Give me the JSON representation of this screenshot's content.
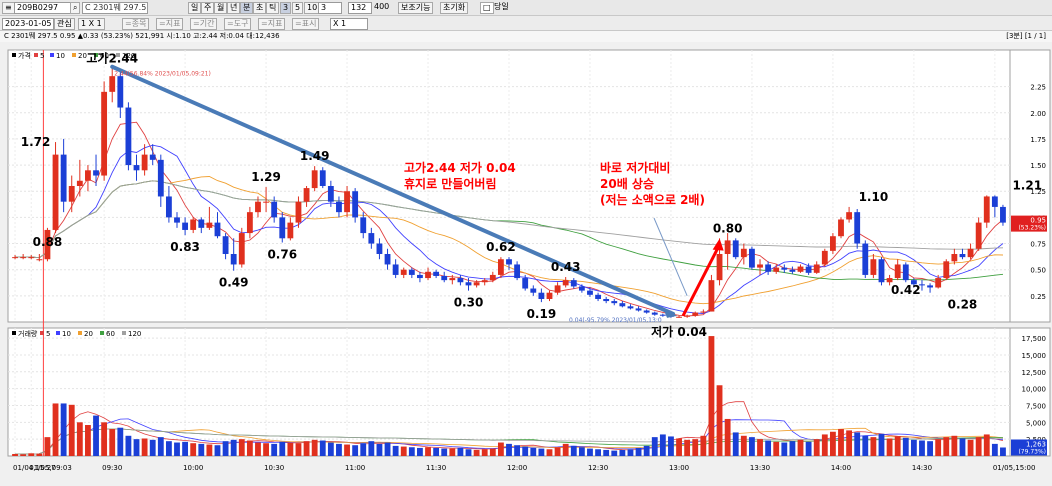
{
  "toolbar": {
    "code_value": "209B0297",
    "period_buttons": [
      "일",
      "주",
      "월",
      "년",
      "분",
      "초",
      "틱"
    ],
    "minute_buttons": [
      "3",
      "5",
      "10",
      "3"
    ],
    "count_value": "132",
    "total_count": "400",
    "assist_label": "보조기능",
    "reset_label": "초기화",
    "overlay_label": "당일"
  },
  "toolbar2": {
    "date_value": "2023-01-05",
    "interest_label": "관심",
    "ratio_label": "1 X 1",
    "buttons": [
      "=종목",
      "=지표",
      "=기간",
      "=도구",
      "=지표",
      "=표시"
    ],
    "zoom_value": "X 1"
  },
  "infobar": {
    "text": "C 2301뛔 297.5   0.95 ▲0.33 (53.23%)   521,991 시:1.10 고:2.44 저:0.04 대:12,436",
    "page_indicator": "[3분] [1 / 1]"
  },
  "price_legend": [
    "가격",
    "5",
    "10",
    "20",
    "60",
    "120"
  ],
  "volume_legend": [
    "거래량",
    "5",
    "10",
    "20",
    "60",
    "120"
  ],
  "colors": {
    "up": "#e0301e",
    "down": "#1b3fd6",
    "ma5": "#e04040",
    "ma10": "#4040ff",
    "ma20": "#f0a030",
    "ma60": "#40a040",
    "ma120": "#a0a0a0",
    "trend_line": "#4a7bb7",
    "annotation_red": "#ff0000"
  },
  "chart_data": {
    "type": "candlestick",
    "title": "",
    "y_ticks": [
      0.25,
      0.5,
      0.75,
      1.0,
      1.25,
      1.5,
      1.75,
      2.0,
      2.25
    ],
    "y_tick_labels": [
      "0.25",
      "0.50",
      "0.75",
      "1.00",
      "1.25",
      "1.50",
      "1.75",
      "2.00",
      "2.25"
    ],
    "ylim": [
      0,
      2.6
    ],
    "volume_ticks": [
      2500,
      5000,
      7500,
      10000,
      12500,
      15000,
      17500
    ],
    "volume_tick_labels": [
      "2,500",
      "5,000",
      "7,500",
      "10,000",
      "12,500",
      "15,000",
      "17,500"
    ],
    "volume_ylim": [
      0,
      19000
    ],
    "x_ticks": [
      {
        "i": 0,
        "label": "01/04,15:27"
      },
      {
        "i": 2,
        "label": "01/05,09:03"
      },
      {
        "i": 11,
        "label": "09:30"
      },
      {
        "i": 21,
        "label": "10:00"
      },
      {
        "i": 31,
        "label": "10:30"
      },
      {
        "i": 41,
        "label": "11:00"
      },
      {
        "i": 51,
        "label": "11:30"
      },
      {
        "i": 61,
        "label": "12:00"
      },
      {
        "i": 71,
        "label": "12:30"
      },
      {
        "i": 81,
        "label": "13:00"
      },
      {
        "i": 91,
        "label": "13:30"
      },
      {
        "i": 101,
        "label": "14:00"
      },
      {
        "i": 111,
        "label": "14:30"
      },
      {
        "i": 121,
        "label": "01/05,15:00"
      }
    ],
    "candles": [
      {
        "o": 0.62,
        "h": 0.64,
        "l": 0.6,
        "c": 0.62,
        "v": 300
      },
      {
        "o": 0.62,
        "h": 0.65,
        "l": 0.6,
        "c": 0.62,
        "v": 250
      },
      {
        "o": 0.62,
        "h": 0.64,
        "l": 0.6,
        "c": 0.62,
        "v": 400
      },
      {
        "o": 0.6,
        "h": 0.65,
        "l": 0.58,
        "c": 0.6,
        "v": 350
      },
      {
        "o": 0.6,
        "h": 0.9,
        "l": 0.58,
        "c": 0.88,
        "v": 2800
      },
      {
        "o": 0.88,
        "h": 1.72,
        "l": 0.85,
        "c": 1.6,
        "v": 7800
      },
      {
        "o": 1.6,
        "h": 1.75,
        "l": 1.05,
        "c": 1.15,
        "v": 7800
      },
      {
        "o": 1.15,
        "h": 1.4,
        "l": 1.05,
        "c": 1.3,
        "v": 7600
      },
      {
        "o": 1.3,
        "h": 1.55,
        "l": 1.2,
        "c": 1.35,
        "v": 5000
      },
      {
        "o": 1.35,
        "h": 1.5,
        "l": 1.25,
        "c": 1.45,
        "v": 4600
      },
      {
        "o": 1.45,
        "h": 1.6,
        "l": 1.3,
        "c": 1.4,
        "v": 6000
      },
      {
        "o": 1.4,
        "h": 2.3,
        "l": 1.35,
        "c": 2.2,
        "v": 5000
      },
      {
        "o": 2.2,
        "h": 2.44,
        "l": 2.1,
        "c": 2.35,
        "v": 4000
      },
      {
        "o": 2.35,
        "h": 2.4,
        "l": 1.95,
        "c": 2.05,
        "v": 4200
      },
      {
        "o": 2.05,
        "h": 2.1,
        "l": 1.45,
        "c": 1.5,
        "v": 3000
      },
      {
        "o": 1.5,
        "h": 1.6,
        "l": 1.35,
        "c": 1.45,
        "v": 2500
      },
      {
        "o": 1.45,
        "h": 1.7,
        "l": 1.4,
        "c": 1.6,
        "v": 2600
      },
      {
        "o": 1.6,
        "h": 1.7,
        "l": 1.5,
        "c": 1.55,
        "v": 2400
      },
      {
        "o": 1.55,
        "h": 1.6,
        "l": 1.1,
        "c": 1.2,
        "v": 2800
      },
      {
        "o": 1.2,
        "h": 1.3,
        "l": 0.95,
        "c": 1.0,
        "v": 2200
      },
      {
        "o": 1.0,
        "h": 1.05,
        "l": 0.9,
        "c": 0.95,
        "v": 2000
      },
      {
        "o": 0.95,
        "h": 1.0,
        "l": 0.83,
        "c": 0.88,
        "v": 2100
      },
      {
        "o": 0.88,
        "h": 1.0,
        "l": 0.85,
        "c": 0.98,
        "v": 1900
      },
      {
        "o": 0.98,
        "h": 1.0,
        "l": 0.85,
        "c": 0.9,
        "v": 1800
      },
      {
        "o": 0.9,
        "h": 1.1,
        "l": 0.88,
        "c": 0.95,
        "v": 1700
      },
      {
        "o": 0.95,
        "h": 1.05,
        "l": 0.8,
        "c": 0.82,
        "v": 1600
      },
      {
        "o": 0.82,
        "h": 0.85,
        "l": 0.6,
        "c": 0.65,
        "v": 2200
      },
      {
        "o": 0.65,
        "h": 0.8,
        "l": 0.49,
        "c": 0.55,
        "v": 2400
      },
      {
        "o": 0.55,
        "h": 0.9,
        "l": 0.52,
        "c": 0.85,
        "v": 2500
      },
      {
        "o": 0.85,
        "h": 1.1,
        "l": 0.8,
        "c": 1.05,
        "v": 2300
      },
      {
        "o": 1.05,
        "h": 1.2,
        "l": 1.0,
        "c": 1.15,
        "v": 2000
      },
      {
        "o": 1.15,
        "h": 1.29,
        "l": 1.05,
        "c": 1.15,
        "v": 1900
      },
      {
        "o": 1.15,
        "h": 1.2,
        "l": 0.95,
        "c": 1.0,
        "v": 1800
      },
      {
        "o": 1.0,
        "h": 1.05,
        "l": 0.76,
        "c": 0.8,
        "v": 2100
      },
      {
        "o": 0.8,
        "h": 1.0,
        "l": 0.78,
        "c": 0.95,
        "v": 2000
      },
      {
        "o": 0.95,
        "h": 1.2,
        "l": 0.9,
        "c": 1.15,
        "v": 1900
      },
      {
        "o": 1.15,
        "h": 1.3,
        "l": 1.1,
        "c": 1.28,
        "v": 2200
      },
      {
        "o": 1.28,
        "h": 1.49,
        "l": 1.25,
        "c": 1.45,
        "v": 2400
      },
      {
        "o": 1.45,
        "h": 1.48,
        "l": 1.28,
        "c": 1.3,
        "v": 2300
      },
      {
        "o": 1.3,
        "h": 1.35,
        "l": 1.1,
        "c": 1.15,
        "v": 2000
      },
      {
        "o": 1.15,
        "h": 1.2,
        "l": 1.0,
        "c": 1.05,
        "v": 1800
      },
      {
        "o": 1.05,
        "h": 1.3,
        "l": 1.0,
        "c": 1.25,
        "v": 1700
      },
      {
        "o": 1.25,
        "h": 1.28,
        "l": 0.95,
        "c": 1.0,
        "v": 1600
      },
      {
        "o": 1.0,
        "h": 1.05,
        "l": 0.8,
        "c": 0.85,
        "v": 1900
      },
      {
        "o": 0.85,
        "h": 0.9,
        "l": 0.7,
        "c": 0.75,
        "v": 2200
      },
      {
        "o": 0.75,
        "h": 0.8,
        "l": 0.6,
        "c": 0.65,
        "v": 1800
      },
      {
        "o": 0.65,
        "h": 0.7,
        "l": 0.5,
        "c": 0.55,
        "v": 2000
      },
      {
        "o": 0.55,
        "h": 0.6,
        "l": 0.42,
        "c": 0.45,
        "v": 1500
      },
      {
        "o": 0.45,
        "h": 0.52,
        "l": 0.42,
        "c": 0.5,
        "v": 1400
      },
      {
        "o": 0.5,
        "h": 0.52,
        "l": 0.42,
        "c": 0.45,
        "v": 1300
      },
      {
        "o": 0.45,
        "h": 0.48,
        "l": 0.38,
        "c": 0.42,
        "v": 1200
      },
      {
        "o": 0.42,
        "h": 0.52,
        "l": 0.4,
        "c": 0.48,
        "v": 1300
      },
      {
        "o": 0.48,
        "h": 0.5,
        "l": 0.42,
        "c": 0.44,
        "v": 1200
      },
      {
        "o": 0.44,
        "h": 0.48,
        "l": 0.38,
        "c": 0.4,
        "v": 1100
      },
      {
        "o": 0.4,
        "h": 0.45,
        "l": 0.36,
        "c": 0.42,
        "v": 1100
      },
      {
        "o": 0.42,
        "h": 0.45,
        "l": 0.35,
        "c": 0.38,
        "v": 1200
      },
      {
        "o": 0.38,
        "h": 0.42,
        "l": 0.3,
        "c": 0.35,
        "v": 1000
      },
      {
        "o": 0.35,
        "h": 0.4,
        "l": 0.33,
        "c": 0.38,
        "v": 900
      },
      {
        "o": 0.38,
        "h": 0.42,
        "l": 0.35,
        "c": 0.4,
        "v": 1000
      },
      {
        "o": 0.4,
        "h": 0.48,
        "l": 0.38,
        "c": 0.45,
        "v": 1100
      },
      {
        "o": 0.45,
        "h": 0.62,
        "l": 0.42,
        "c": 0.6,
        "v": 2000
      },
      {
        "o": 0.6,
        "h": 0.62,
        "l": 0.5,
        "c": 0.55,
        "v": 1800
      },
      {
        "o": 0.55,
        "h": 0.58,
        "l": 0.4,
        "c": 0.42,
        "v": 1600
      },
      {
        "o": 0.42,
        "h": 0.45,
        "l": 0.3,
        "c": 0.32,
        "v": 1400
      },
      {
        "o": 0.32,
        "h": 0.35,
        "l": 0.25,
        "c": 0.28,
        "v": 1200
      },
      {
        "o": 0.28,
        "h": 0.32,
        "l": 0.19,
        "c": 0.22,
        "v": 1100
      },
      {
        "o": 0.22,
        "h": 0.3,
        "l": 0.2,
        "c": 0.28,
        "v": 1000
      },
      {
        "o": 0.28,
        "h": 0.38,
        "l": 0.26,
        "c": 0.35,
        "v": 1300
      },
      {
        "o": 0.35,
        "h": 0.43,
        "l": 0.33,
        "c": 0.4,
        "v": 1800
      },
      {
        "o": 0.4,
        "h": 0.42,
        "l": 0.32,
        "c": 0.34,
        "v": 1500
      },
      {
        "o": 0.34,
        "h": 0.36,
        "l": 0.28,
        "c": 0.3,
        "v": 1300
      },
      {
        "o": 0.3,
        "h": 0.33,
        "l": 0.24,
        "c": 0.26,
        "v": 1100
      },
      {
        "o": 0.26,
        "h": 0.28,
        "l": 0.2,
        "c": 0.22,
        "v": 1000
      },
      {
        "o": 0.22,
        "h": 0.24,
        "l": 0.18,
        "c": 0.2,
        "v": 900
      },
      {
        "o": 0.2,
        "h": 0.22,
        "l": 0.16,
        "c": 0.18,
        "v": 800
      },
      {
        "o": 0.18,
        "h": 0.2,
        "l": 0.14,
        "c": 0.15,
        "v": 900
      },
      {
        "o": 0.15,
        "h": 0.17,
        "l": 0.12,
        "c": 0.13,
        "v": 1000
      },
      {
        "o": 0.13,
        "h": 0.15,
        "l": 0.1,
        "c": 0.11,
        "v": 1200
      },
      {
        "o": 0.11,
        "h": 0.12,
        "l": 0.08,
        "c": 0.09,
        "v": 1500
      },
      {
        "o": 0.09,
        "h": 0.1,
        "l": 0.06,
        "c": 0.07,
        "v": 2800
      },
      {
        "o": 0.07,
        "h": 0.08,
        "l": 0.05,
        "c": 0.06,
        "v": 3200
      },
      {
        "o": 0.06,
        "h": 0.07,
        "l": 0.04,
        "c": 0.05,
        "v": 2900
      },
      {
        "o": 0.05,
        "h": 0.06,
        "l": 0.04,
        "c": 0.05,
        "v": 2600
      },
      {
        "o": 0.05,
        "h": 0.07,
        "l": 0.04,
        "c": 0.06,
        "v": 2400
      },
      {
        "o": 0.06,
        "h": 0.1,
        "l": 0.05,
        "c": 0.09,
        "v": 2500
      },
      {
        "o": 0.09,
        "h": 0.12,
        "l": 0.08,
        "c": 0.1,
        "v": 3000
      },
      {
        "o": 0.1,
        "h": 0.45,
        "l": 0.1,
        "c": 0.4,
        "v": 17800
      },
      {
        "o": 0.4,
        "h": 0.8,
        "l": 0.35,
        "c": 0.65,
        "v": 10500
      },
      {
        "o": 0.65,
        "h": 0.85,
        "l": 0.5,
        "c": 0.78,
        "v": 5500
      },
      {
        "o": 0.78,
        "h": 0.8,
        "l": 0.6,
        "c": 0.62,
        "v": 3500
      },
      {
        "o": 0.62,
        "h": 0.75,
        "l": 0.55,
        "c": 0.7,
        "v": 3000
      },
      {
        "o": 0.7,
        "h": 0.72,
        "l": 0.5,
        "c": 0.52,
        "v": 2800
      },
      {
        "o": 0.52,
        "h": 0.6,
        "l": 0.45,
        "c": 0.55,
        "v": 2500
      },
      {
        "o": 0.55,
        "h": 0.58,
        "l": 0.45,
        "c": 0.48,
        "v": 2300
      },
      {
        "o": 0.48,
        "h": 0.55,
        "l": 0.46,
        "c": 0.52,
        "v": 2100
      },
      {
        "o": 0.52,
        "h": 0.55,
        "l": 0.47,
        "c": 0.5,
        "v": 2000
      },
      {
        "o": 0.5,
        "h": 0.53,
        "l": 0.46,
        "c": 0.48,
        "v": 2200
      },
      {
        "o": 0.48,
        "h": 0.55,
        "l": 0.47,
        "c": 0.53,
        "v": 2400
      },
      {
        "o": 0.53,
        "h": 0.56,
        "l": 0.45,
        "c": 0.47,
        "v": 2100
      },
      {
        "o": 0.47,
        "h": 0.58,
        "l": 0.46,
        "c": 0.55,
        "v": 2500
      },
      {
        "o": 0.55,
        "h": 0.7,
        "l": 0.53,
        "c": 0.68,
        "v": 3200
      },
      {
        "o": 0.68,
        "h": 0.85,
        "l": 0.65,
        "c": 0.82,
        "v": 3600
      },
      {
        "o": 0.82,
        "h": 1.0,
        "l": 0.8,
        "c": 0.98,
        "v": 4000
      },
      {
        "o": 0.98,
        "h": 1.1,
        "l": 0.95,
        "c": 1.05,
        "v": 3800
      },
      {
        "o": 1.05,
        "h": 1.08,
        "l": 0.7,
        "c": 0.75,
        "v": 3500
      },
      {
        "o": 0.75,
        "h": 0.78,
        "l": 0.42,
        "c": 0.45,
        "v": 3000
      },
      {
        "o": 0.45,
        "h": 0.65,
        "l": 0.42,
        "c": 0.6,
        "v": 2800
      },
      {
        "o": 0.6,
        "h": 0.62,
        "l": 0.35,
        "c": 0.38,
        "v": 3300
      },
      {
        "o": 0.38,
        "h": 0.45,
        "l": 0.35,
        "c": 0.42,
        "v": 2600
      },
      {
        "o": 0.42,
        "h": 0.6,
        "l": 0.4,
        "c": 0.55,
        "v": 2900
      },
      {
        "o": 0.55,
        "h": 0.57,
        "l": 0.38,
        "c": 0.4,
        "v": 2700
      },
      {
        "o": 0.4,
        "h": 0.42,
        "l": 0.33,
        "c": 0.36,
        "v": 2400
      },
      {
        "o": 0.36,
        "h": 0.4,
        "l": 0.3,
        "c": 0.35,
        "v": 2300
      },
      {
        "o": 0.35,
        "h": 0.37,
        "l": 0.28,
        "c": 0.33,
        "v": 2200
      },
      {
        "o": 0.33,
        "h": 0.45,
        "l": 0.32,
        "c": 0.42,
        "v": 2500
      },
      {
        "o": 0.42,
        "h": 0.6,
        "l": 0.4,
        "c": 0.58,
        "v": 2800
      },
      {
        "o": 0.58,
        "h": 0.7,
        "l": 0.55,
        "c": 0.65,
        "v": 3000
      },
      {
        "o": 0.65,
        "h": 0.7,
        "l": 0.6,
        "c": 0.62,
        "v": 2600
      },
      {
        "o": 0.62,
        "h": 0.75,
        "l": 0.6,
        "c": 0.7,
        "v": 2400
      },
      {
        "o": 0.7,
        "h": 1.0,
        "l": 0.68,
        "c": 0.95,
        "v": 2800
      },
      {
        "o": 0.95,
        "h": 1.21,
        "l": 0.9,
        "c": 1.2,
        "v": 3200
      },
      {
        "o": 1.2,
        "h": 1.21,
        "l": 1.0,
        "c": 1.1,
        "v": 1800
      },
      {
        "o": 1.1,
        "h": 1.12,
        "l": 0.92,
        "c": 0.95,
        "v": 1263
      }
    ],
    "annotations": [
      {
        "i": 12,
        "value": 2.44,
        "text": "고가2.44",
        "pos": "above"
      },
      {
        "i": 5,
        "value": 1.72,
        "text": "1.72",
        "pos": "left"
      },
      {
        "i": 4,
        "value": 0.88,
        "text": "0.88",
        "pos": "below"
      },
      {
        "i": 21,
        "value": 0.83,
        "text": "0.83",
        "pos": "below"
      },
      {
        "i": 27,
        "value": 0.49,
        "text": "0.49",
        "pos": "below"
      },
      {
        "i": 31,
        "value": 1.29,
        "text": "1.29",
        "pos": "above"
      },
      {
        "i": 33,
        "value": 0.76,
        "text": "0.76",
        "pos": "below"
      },
      {
        "i": 37,
        "value": 1.49,
        "text": "1.49",
        "pos": "above"
      },
      {
        "i": 60,
        "value": 0.62,
        "text": "0.62",
        "pos": "above"
      },
      {
        "i": 56,
        "value": 0.3,
        "text": "0.30",
        "pos": "below"
      },
      {
        "i": 65,
        "value": 0.19,
        "text": "0.19",
        "pos": "below"
      },
      {
        "i": 68,
        "value": 0.43,
        "text": "0.43",
        "pos": "above"
      },
      {
        "i": 82,
        "value": 0.04,
        "text": "저가 0.04",
        "pos": "below"
      },
      {
        "i": 88,
        "value": 0.8,
        "text": "0.80",
        "pos": "above"
      },
      {
        "i": 106,
        "value": 1.1,
        "text": "1.10",
        "pos": "above"
      },
      {
        "i": 110,
        "value": 0.42,
        "text": "0.42",
        "pos": "below"
      },
      {
        "i": 117,
        "value": 0.28,
        "text": "0.28",
        "pos": "below"
      },
      {
        "i": 125,
        "value": 1.21,
        "text": "1.21",
        "pos": "above"
      }
    ],
    "small_labels": [
      {
        "i": 12,
        "value": 2.44,
        "text": "2.44(56.84% 2023/01/05,09:21)"
      },
      {
        "i": 82,
        "value": 0.04,
        "text": "0.04(-95.79% 2023/01/05,13:0"
      }
    ],
    "text_blocks": [
      {
        "lines": [
          "고가2.44 저가 0.04",
          "휴지로 만들어버림"
        ]
      },
      {
        "lines": [
          "바로 저가대비",
          "20배 상승",
          "(저는 소액으로 2배)"
        ]
      }
    ],
    "current_price_label": "0.95",
    "current_change_label": "(53.23%)",
    "current_volume_label": "1,263",
    "current_volume_pct": "(79.73%)"
  }
}
